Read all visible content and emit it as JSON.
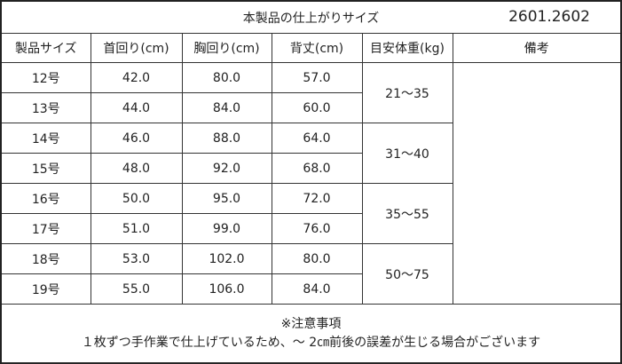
{
  "title": "本製品の仕上がりサイズ",
  "code": "2601.2602",
  "headers": [
    "製品サイズ",
    "首回り(cm)",
    "胸回り(cm)",
    "背丈(cm)",
    "目安体重(kg)",
    "備考"
  ],
  "rows": [
    {
      "size": "12号",
      "neck": "42.0",
      "chest": "80.0",
      "back": "57.0"
    },
    {
      "size": "13号",
      "neck": "44.0",
      "chest": "84.0",
      "back": "60.0"
    },
    {
      "size": "14号",
      "neck": "46.0",
      "chest": "88.0",
      "back": "64.0"
    },
    {
      "size": "15号",
      "neck": "48.0",
      "chest": "92.0",
      "back": "68.0"
    },
    {
      "size": "16号",
      "neck": "50.0",
      "chest": "95.0",
      "back": "72.0"
    },
    {
      "size": "17号",
      "neck": "51.0",
      "chest": "99.0",
      "back": "76.0"
    },
    {
      "size": "18号",
      "neck": "53.0",
      "chest": "102.0",
      "back": "80.0"
    },
    {
      "size": "19号",
      "neck": "55.0",
      "chest": "106.0",
      "back": "84.0"
    }
  ],
  "weights": [
    "21～35",
    "31～40",
    "35～55",
    "50～75"
  ],
  "remarks": "",
  "note": {
    "heading": "※注意事項",
    "text": "１枚ずつ手作業で仕上げているため、～ 2㎝前後の誤差が生じる場合がございます"
  }
}
